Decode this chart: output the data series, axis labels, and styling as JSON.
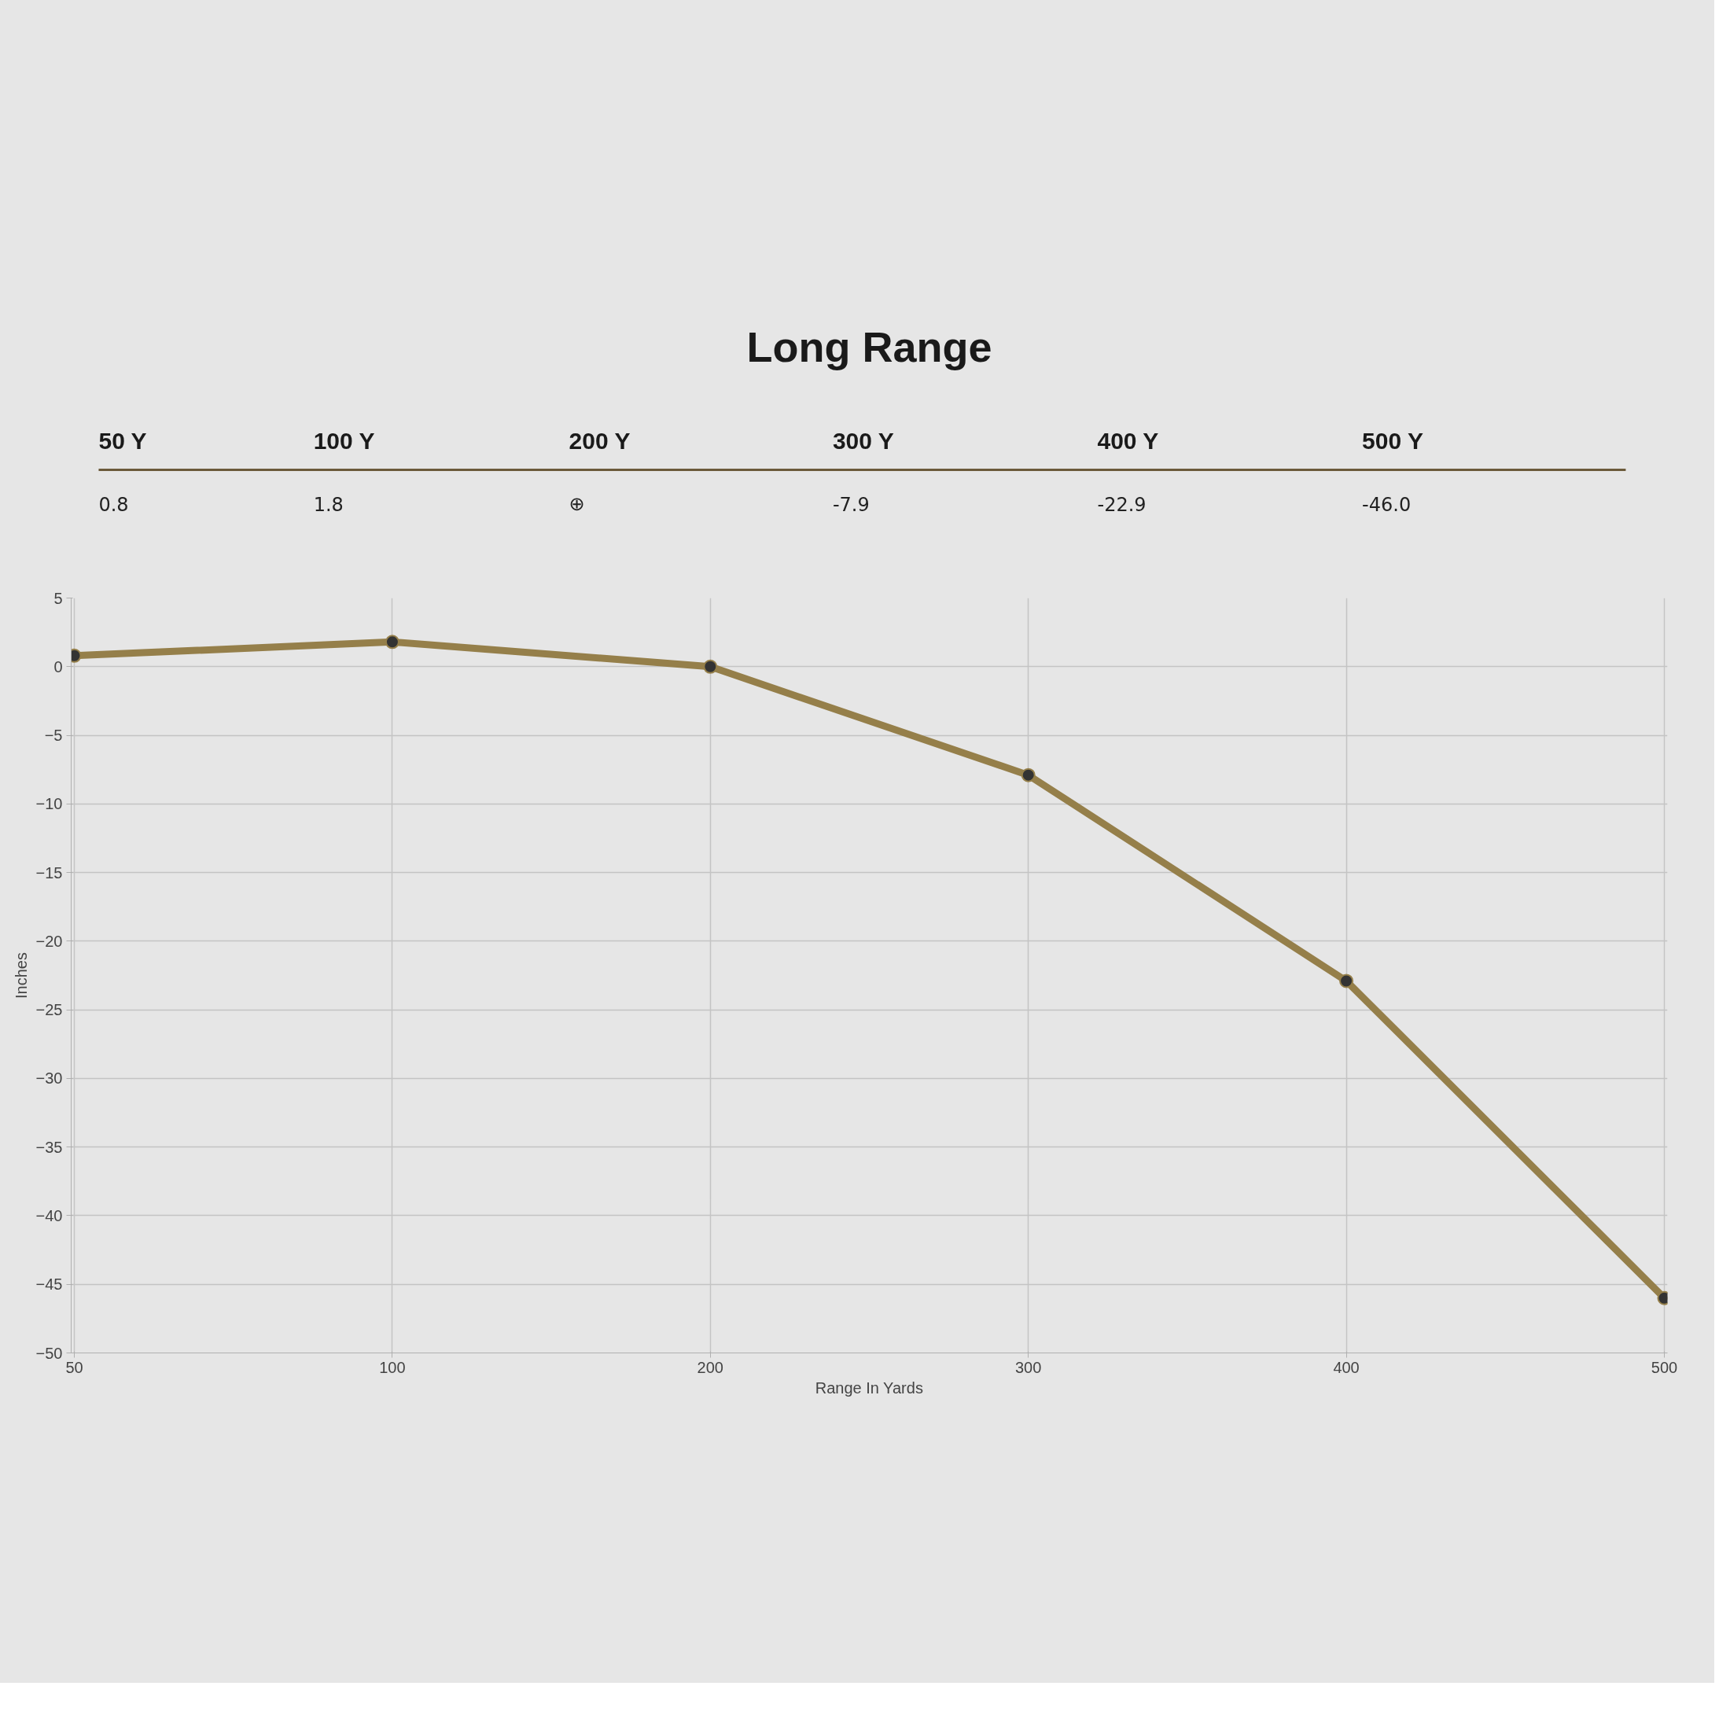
{
  "chart_data": {
    "type": "line",
    "title": "Long Range",
    "xlabel": "Range In Yards",
    "ylabel": "Inches",
    "categories": [
      "50",
      "100",
      "200",
      "300",
      "400",
      "500"
    ],
    "series": [
      {
        "color": "#957f4a",
        "values": [
          0.8,
          1.8,
          0,
          -7.9,
          -22.9,
          -46.0
        ]
      }
    ],
    "value_labels": [
      "0.8",
      "1.8",
      "⊕",
      "-7.9",
      "-22.9",
      "-46.0"
    ],
    "annotations": [
      "50 Y",
      "100 Y",
      "200 Y",
      "300 Y",
      "400 Y",
      "500 Y"
    ],
    "ylim": [
      -50,
      5
    ],
    "yticks": [
      -50,
      -45,
      -40,
      -35,
      -30,
      -25,
      -20,
      -15,
      -10,
      -5,
      0,
      5
    ],
    "grid": true,
    "marker": "circle",
    "line_style": "solid"
  }
}
